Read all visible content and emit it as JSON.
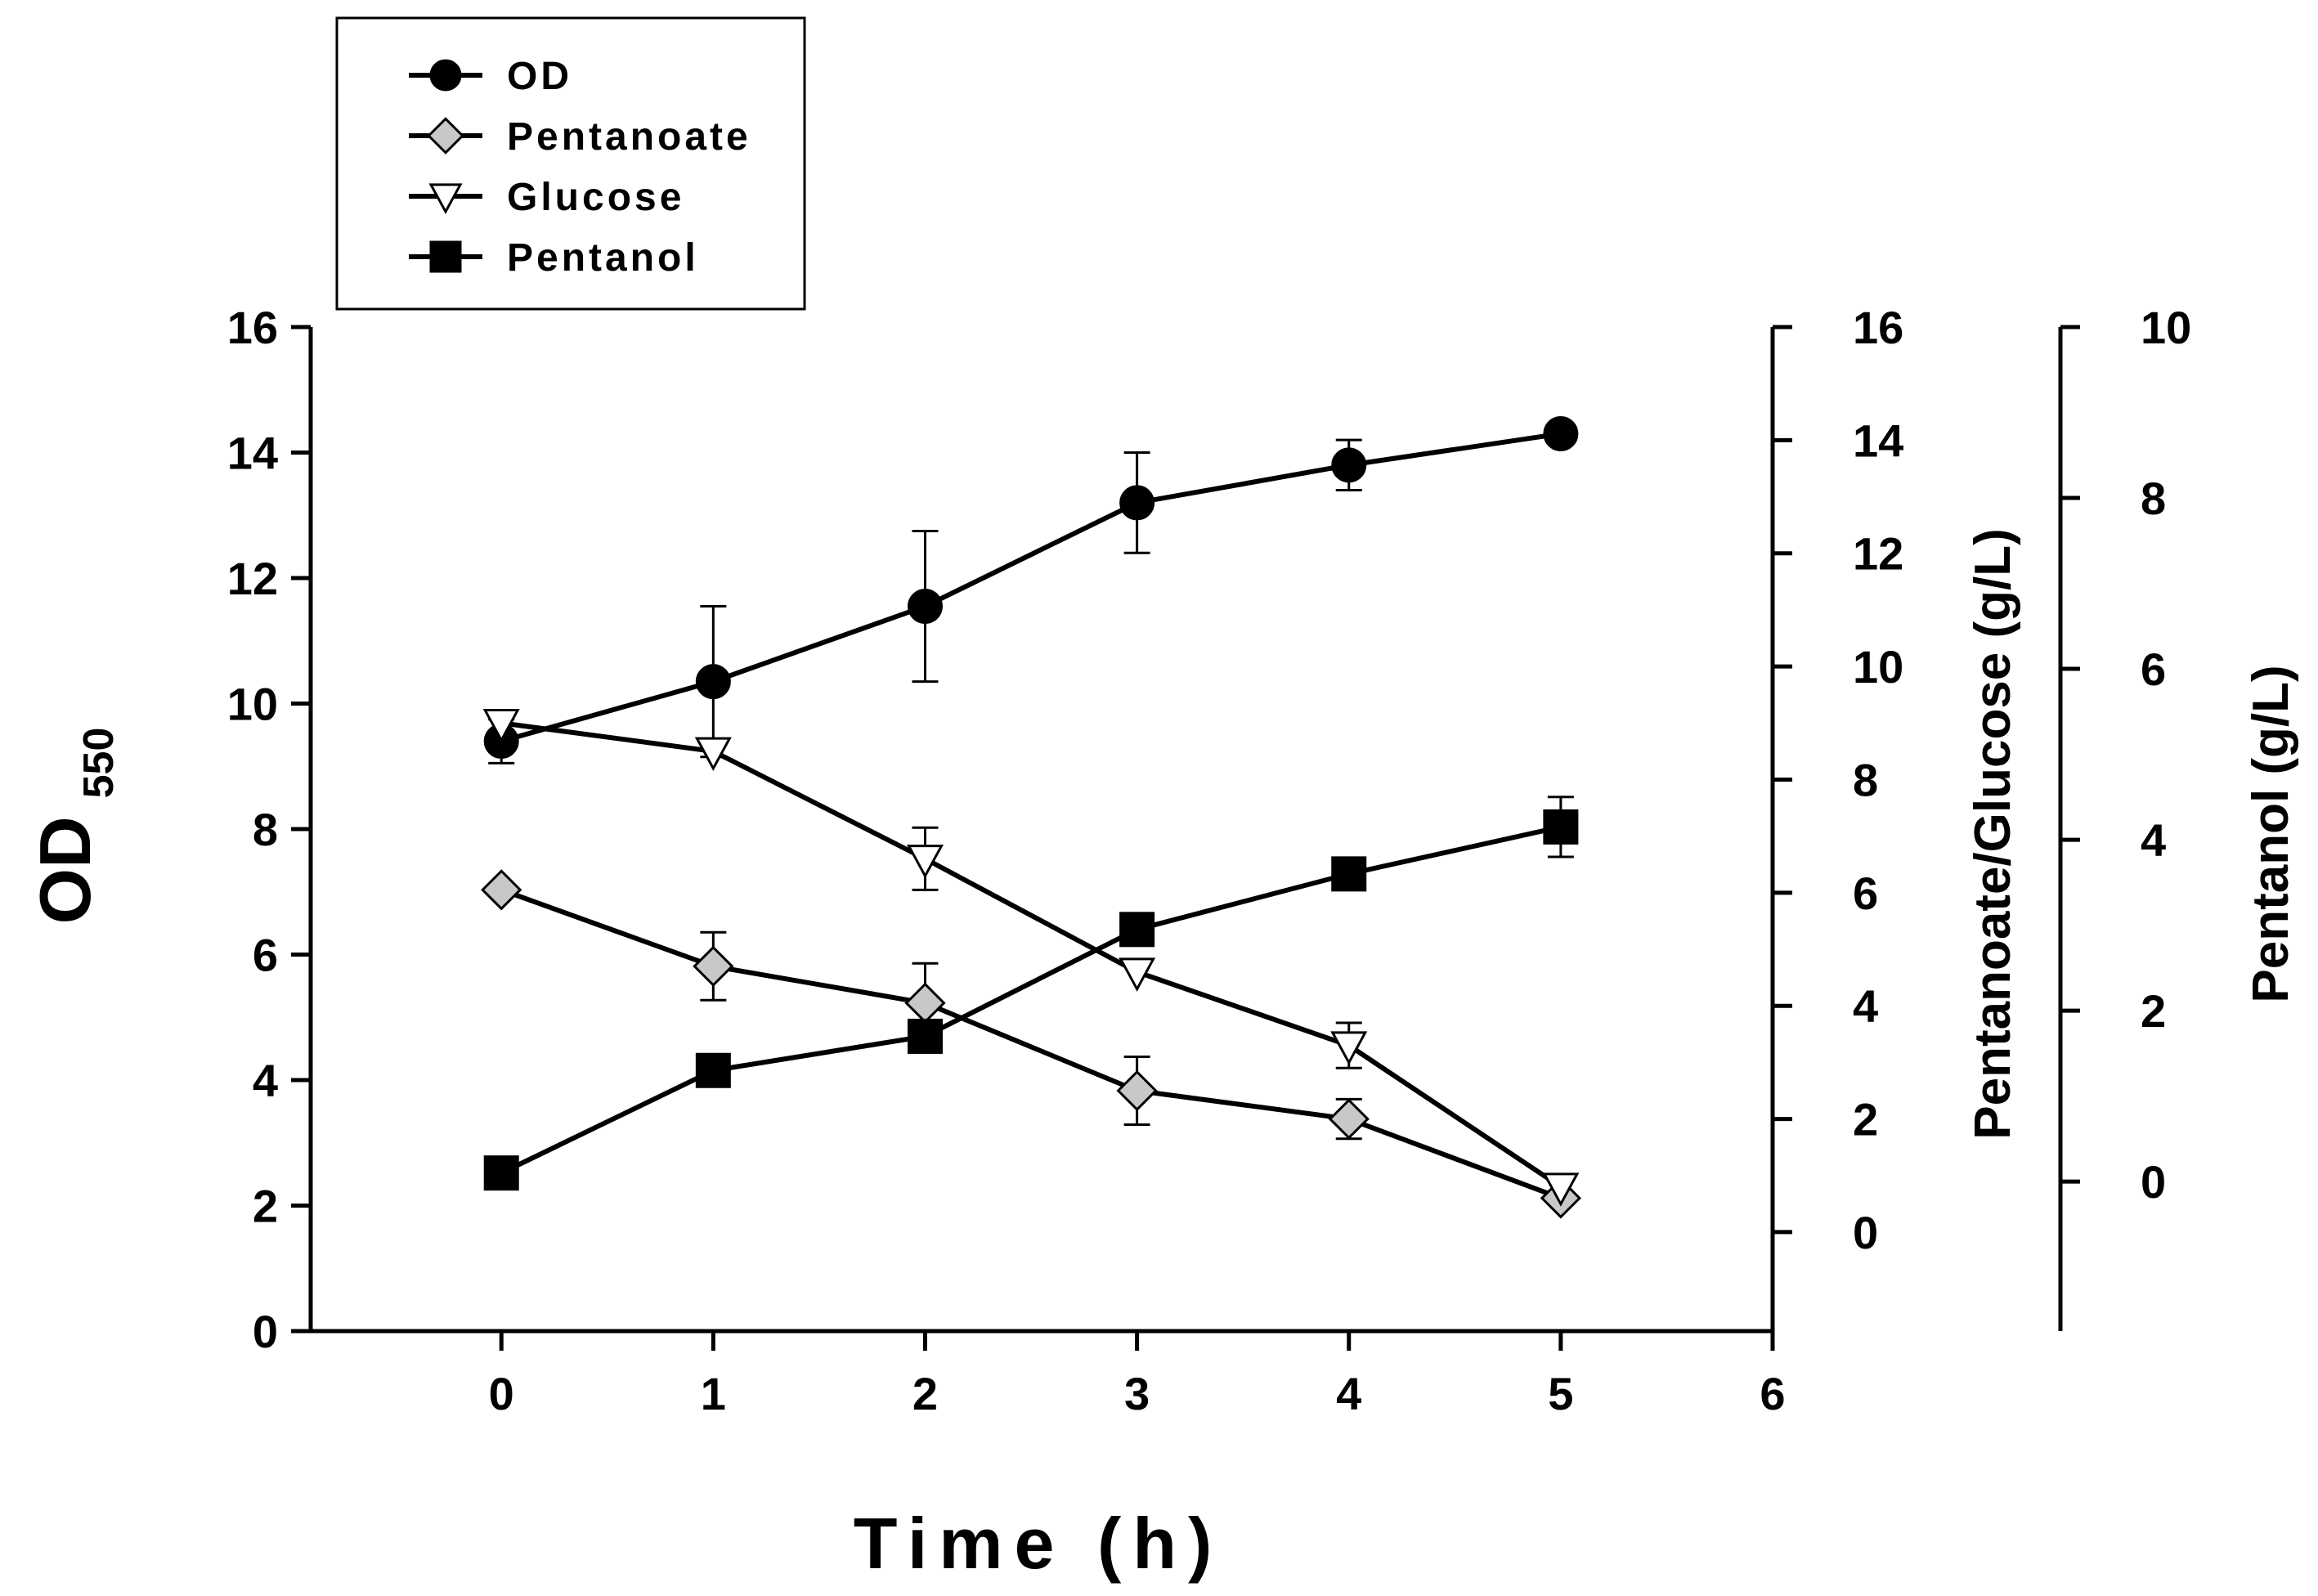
{
  "chart_data": {
    "type": "line",
    "x_label": "Time (h)",
    "y_left_label": "OD",
    "y_left_label_sub": "550",
    "y_right1_label": "Pentanoate/Glucose (g/L)",
    "y_right2_label": "Pentanol (g/L)",
    "x_ticks": [
      "0",
      "1",
      "2",
      "3",
      "4",
      "5",
      "6"
    ],
    "y_left_ticks": [
      "0",
      "2",
      "4",
      "6",
      "8",
      "10",
      "12",
      "14",
      "16"
    ],
    "y_right1_ticks": [
      "0",
      "2",
      "4",
      "6",
      "8",
      "10",
      "12",
      "14",
      "16"
    ],
    "y_right2_ticks": [
      "0",
      "2",
      "4",
      "6",
      "8",
      "10"
    ],
    "x_range": [
      -0.9,
      6
    ],
    "y_left_range": [
      0,
      16
    ],
    "y_right1_range": [
      -1.75,
      16
    ],
    "y_right2_range": [
      -1.75,
      10
    ],
    "series": [
      {
        "name": "OD",
        "axis": "left",
        "marker": "circle",
        "fill": "#000000",
        "x": [
          0,
          1,
          2,
          3,
          4,
          5
        ],
        "y": [
          9.4,
          10.35,
          11.55,
          13.2,
          13.8,
          14.3
        ],
        "err": [
          0.35,
          1.2,
          1.2,
          0.8,
          0.4,
          0.1
        ]
      },
      {
        "name": "Pentanoate",
        "axis": "right1",
        "marker": "diamond",
        "fill": "#c8c8c8",
        "x": [
          0,
          1,
          2,
          3,
          4,
          5
        ],
        "y": [
          6.05,
          4.7,
          4.05,
          2.5,
          2.0,
          0.6
        ],
        "err": [
          0,
          0.6,
          0.7,
          0.6,
          0.35,
          0
        ]
      },
      {
        "name": "Glucose",
        "axis": "right1",
        "marker": "triangle-down",
        "fill": "#ffffff",
        "x": [
          0,
          1,
          2,
          3,
          4,
          5
        ],
        "y": [
          9.0,
          8.5,
          6.6,
          4.6,
          3.3,
          0.8
        ],
        "err": [
          0.2,
          0,
          0.55,
          0,
          0.4,
          0
        ]
      },
      {
        "name": "Pentanol",
        "axis": "right2",
        "marker": "square",
        "fill": "#000000",
        "x": [
          0,
          1,
          2,
          3,
          4,
          5
        ],
        "y": [
          0.1,
          1.3,
          1.7,
          2.95,
          3.6,
          4.15
        ],
        "err": [
          0,
          0,
          0.15,
          0,
          0,
          0.35
        ]
      }
    ]
  }
}
